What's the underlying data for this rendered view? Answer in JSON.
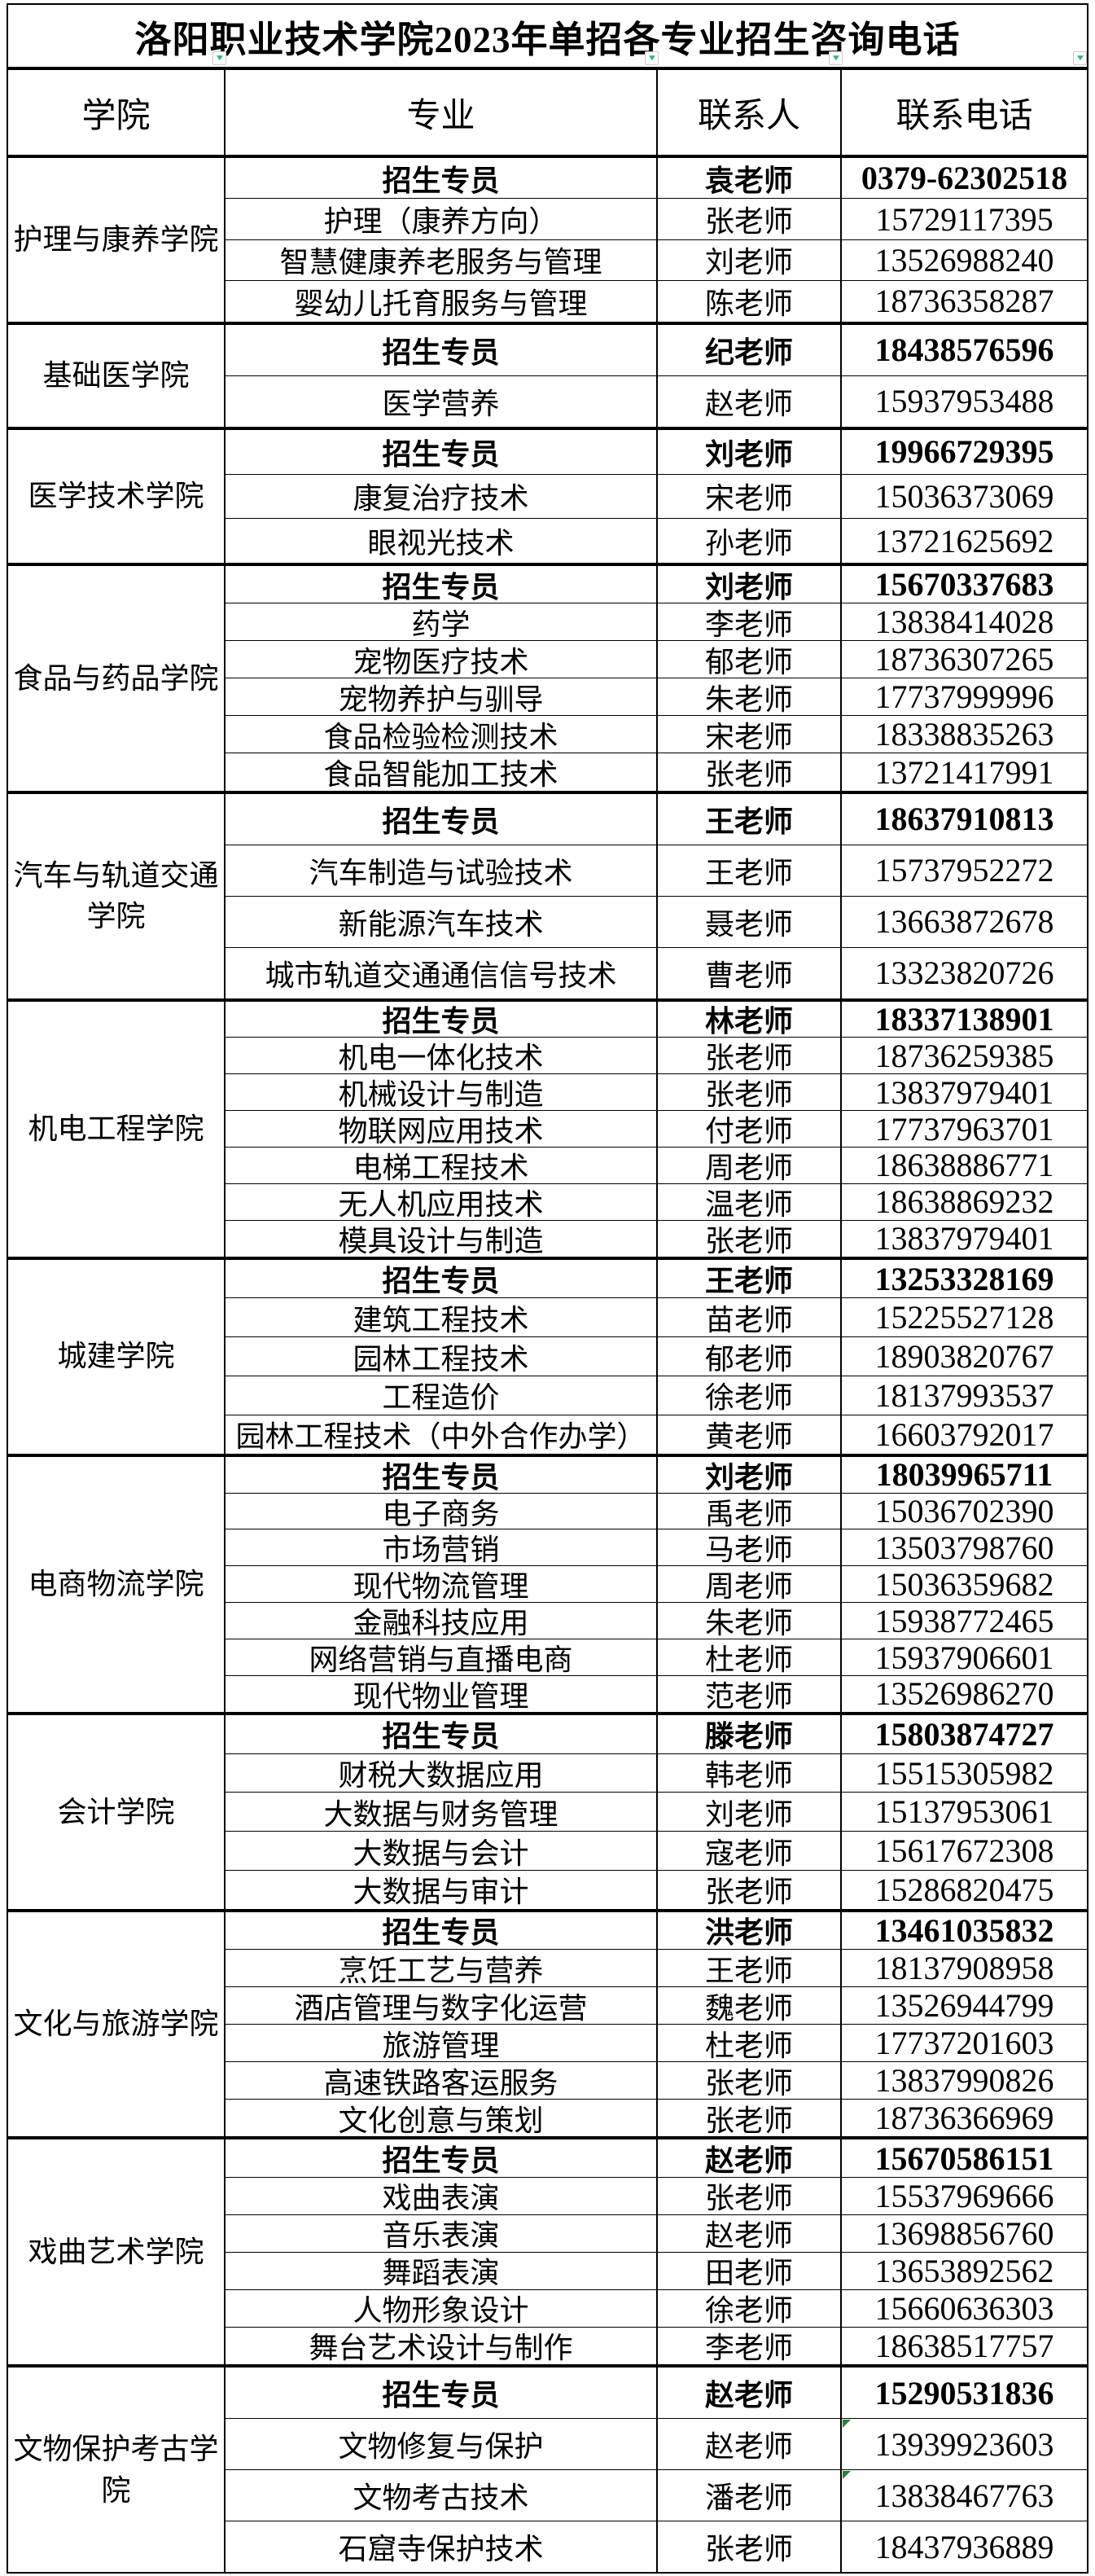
{
  "title": "洛阳职业技术学院2023年单招各专业招生咨询电话",
  "columns": {
    "college": "学院",
    "major": "专业",
    "contact": "联系人",
    "phone": "联系电话"
  },
  "ui": {
    "filter_icon": "▼",
    "filter_icon_color": "#2eb57e",
    "flag_color": "#2e7d32",
    "border_color": "#000000"
  },
  "colleges": [
    {
      "name": "护理与康养学院",
      "rows": [
        {
          "major": "招生专员",
          "contact": "袁老师",
          "phone": "0379-62302518",
          "bold": true
        },
        {
          "major": "护理（康养方向）",
          "contact": "张老师",
          "phone": "15729117395"
        },
        {
          "major": "智慧健康养老服务与管理",
          "contact": "刘老师",
          "phone": "13526988240"
        },
        {
          "major": "婴幼儿托育服务与管理",
          "contact": "陈老师",
          "phone": "18736358287"
        }
      ]
    },
    {
      "name": "基础医学院",
      "rows": [
        {
          "major": "招生专员",
          "contact": "纪老师",
          "phone": "18438576596",
          "bold": true
        },
        {
          "major": "医学营养",
          "contact": "赵老师",
          "phone": "15937953488"
        }
      ]
    },
    {
      "name": "医学技术学院",
      "rows": [
        {
          "major": "招生专员",
          "contact": "刘老师",
          "phone": "19966729395",
          "bold": true
        },
        {
          "major": "康复治疗技术",
          "contact": "宋老师",
          "phone": "15036373069"
        },
        {
          "major": "眼视光技术",
          "contact": "孙老师",
          "phone": "13721625692"
        }
      ]
    },
    {
      "name": "食品与药品学院",
      "rows": [
        {
          "major": "招生专员",
          "contact": "刘老师",
          "phone": "15670337683",
          "bold": true
        },
        {
          "major": "药学",
          "contact": "李老师",
          "phone": "13838414028"
        },
        {
          "major": "宠物医疗技术",
          "contact": "郁老师",
          "phone": "18736307265"
        },
        {
          "major": "宠物养护与驯导",
          "contact": "朱老师",
          "phone": "17737999996"
        },
        {
          "major": "食品检验检测技术",
          "contact": "宋老师",
          "phone": "18338835263"
        },
        {
          "major": "食品智能加工技术",
          "contact": "张老师",
          "phone": "13721417991"
        }
      ]
    },
    {
      "name": "汽车与轨道交通学院",
      "rows": [
        {
          "major": "招生专员",
          "contact": "王老师",
          "phone": "18637910813",
          "bold": true
        },
        {
          "major": "汽车制造与试验技术",
          "contact": "王老师",
          "phone": "15737952272"
        },
        {
          "major": "新能源汽车技术",
          "contact": "聂老师",
          "phone": "13663872678"
        },
        {
          "major": "城市轨道交通通信信号技术",
          "contact": "曹老师",
          "phone": "13323820726"
        }
      ]
    },
    {
      "name": "机电工程学院",
      "rows": [
        {
          "major": "招生专员",
          "contact": "林老师",
          "phone": "18337138901",
          "bold": true
        },
        {
          "major": "机电一体化技术",
          "contact": "张老师",
          "phone": "18736259385"
        },
        {
          "major": "机械设计与制造",
          "contact": "张老师",
          "phone": "13837979401"
        },
        {
          "major": "物联网应用技术",
          "contact": "付老师",
          "phone": "17737963701"
        },
        {
          "major": "电梯工程技术",
          "contact": "周老师",
          "phone": "18638886771"
        },
        {
          "major": "无人机应用技术",
          "contact": "温老师",
          "phone": "18638869232"
        },
        {
          "major": "模具设计与制造",
          "contact": "张老师",
          "phone": "13837979401"
        }
      ]
    },
    {
      "name": "城建学院",
      "rows": [
        {
          "major": "招生专员",
          "contact": "王老师",
          "phone": "13253328169",
          "bold": true
        },
        {
          "major": "建筑工程技术",
          "contact": "苗老师",
          "phone": "15225527128"
        },
        {
          "major": "园林工程技术",
          "contact": "郁老师",
          "phone": "18903820767"
        },
        {
          "major": "工程造价",
          "contact": "徐老师",
          "phone": "18137993537"
        },
        {
          "major": "园林工程技术（中外合作办学）",
          "contact": "黄老师",
          "phone": "16603792017"
        }
      ]
    },
    {
      "name": "电商物流学院",
      "rows": [
        {
          "major": "招生专员",
          "contact": "刘老师",
          "phone": "18039965711",
          "bold": true
        },
        {
          "major": "电子商务",
          "contact": "禹老师",
          "phone": "15036702390"
        },
        {
          "major": "市场营销",
          "contact": "马老师",
          "phone": "13503798760"
        },
        {
          "major": "现代物流管理",
          "contact": "周老师",
          "phone": "15036359682"
        },
        {
          "major": "金融科技应用",
          "contact": "朱老师",
          "phone": "15938772465"
        },
        {
          "major": "网络营销与直播电商",
          "contact": "杜老师",
          "phone": "15937906601"
        },
        {
          "major": "现代物业管理",
          "contact": "范老师",
          "phone": "13526986270"
        }
      ]
    },
    {
      "name": "会计学院",
      "rows": [
        {
          "major": "招生专员",
          "contact": "滕老师",
          "phone": "15803874727",
          "bold": true
        },
        {
          "major": "财税大数据应用",
          "contact": "韩老师",
          "phone": "15515305982"
        },
        {
          "major": "大数据与财务管理",
          "contact": "刘老师",
          "phone": "15137953061"
        },
        {
          "major": "大数据与会计",
          "contact": "寇老师",
          "phone": "15617672308"
        },
        {
          "major": "大数据与审计",
          "contact": "张老师",
          "phone": "15286820475"
        }
      ]
    },
    {
      "name": "文化与旅游学院",
      "rows": [
        {
          "major": "招生专员",
          "contact": "洪老师",
          "phone": "13461035832",
          "bold": true
        },
        {
          "major": "烹饪工艺与营养",
          "contact": "王老师",
          "phone": "18137908958"
        },
        {
          "major": "酒店管理与数字化运营",
          "contact": "魏老师",
          "phone": "13526944799"
        },
        {
          "major": "旅游管理",
          "contact": "杜老师",
          "phone": "17737201603"
        },
        {
          "major": "高速铁路客运服务",
          "contact": "张老师",
          "phone": "13837990826"
        },
        {
          "major": "文化创意与策划",
          "contact": "张老师",
          "phone": "18736366969"
        }
      ]
    },
    {
      "name": "戏曲艺术学院",
      "rows": [
        {
          "major": "招生专员",
          "contact": "赵老师",
          "phone": "15670586151",
          "bold": true
        },
        {
          "major": "戏曲表演",
          "contact": "张老师",
          "phone": "15537969666"
        },
        {
          "major": "音乐表演",
          "contact": "赵老师",
          "phone": "13698856760"
        },
        {
          "major": "舞蹈表演",
          "contact": "田老师",
          "phone": "13653892562"
        },
        {
          "major": "人物形象设计",
          "contact": "徐老师",
          "phone": "15660636303"
        },
        {
          "major": "舞台艺术设计与制作",
          "contact": "李老师",
          "phone": "18638517757"
        }
      ]
    },
    {
      "name": "文物保护考古学院",
      "rows": [
        {
          "major": "招生专员",
          "contact": "赵老师",
          "phone": "15290531836",
          "bold": true
        },
        {
          "major": "文物修复与保护",
          "contact": "赵老师",
          "phone": "13939923603",
          "flag": true
        },
        {
          "major": "文物考古技术",
          "contact": "潘老师",
          "phone": "13838467763",
          "flag": true
        },
        {
          "major": "石窟寺保护技术",
          "contact": "张老师",
          "phone": "18437936889"
        }
      ]
    }
  ]
}
